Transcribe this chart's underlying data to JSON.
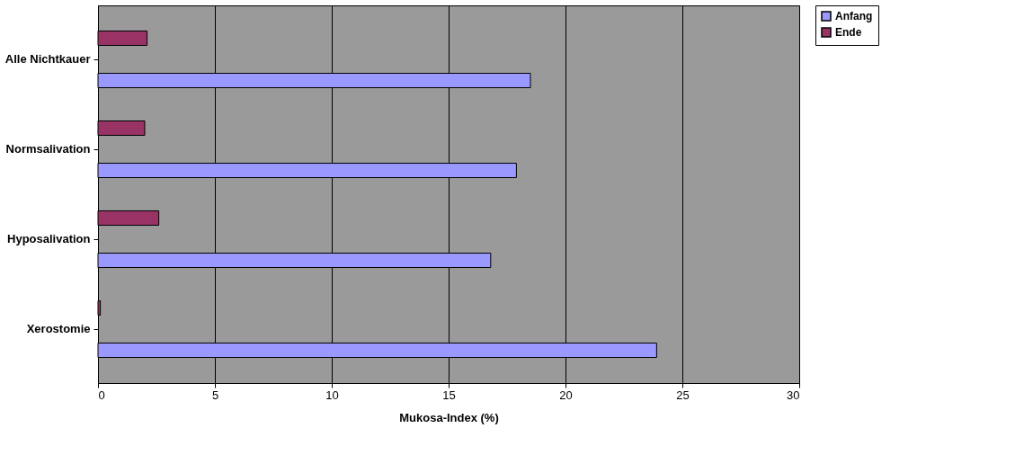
{
  "chart_data": {
    "type": "bar",
    "orientation": "horizontal",
    "xlabel": "Mukosa-Index (%)",
    "categories": [
      "Alle Nichtkauer",
      "Normsalivation",
      "Hyposalivation",
      "Xerostomie"
    ],
    "series": [
      {
        "name": "Anfang",
        "color": "#9999ff",
        "values": [
          18.5,
          17.9,
          16.8,
          23.9
        ]
      },
      {
        "name": "Ende",
        "color": "#993366",
        "values": [
          2.1,
          2.0,
          2.6,
          0.1
        ]
      }
    ],
    "xlim": [
      0,
      30
    ],
    "xticks": [
      0,
      5,
      10,
      15,
      20,
      25,
      30
    ],
    "grid": "x",
    "legend": "right"
  }
}
